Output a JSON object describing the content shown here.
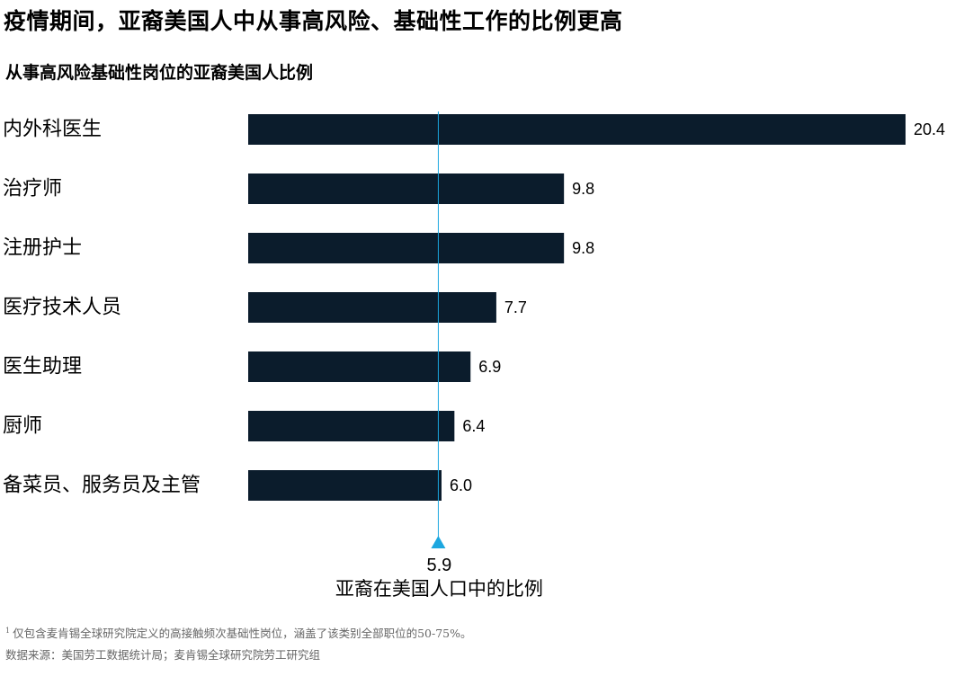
{
  "title": "疫情期间，亚裔美国人中从事高风险、基础性工作的比例更高",
  "subtitle": "从事高风险基础性岗位的亚裔美国人比例",
  "chart_data": {
    "type": "bar",
    "orientation": "horizontal",
    "categories": [
      "内外科医生",
      "治疗师",
      "注册护士",
      "医疗技术人员",
      "医生助理",
      "厨师",
      "备菜员、服务员及主管"
    ],
    "values": [
      20.4,
      9.8,
      9.8,
      7.7,
      6.9,
      6.4,
      6.0
    ],
    "value_labels": [
      "20.4",
      "9.8",
      "9.8",
      "7.7",
      "6.9",
      "6.4",
      "6.0"
    ],
    "xlim": [
      0,
      20.4
    ],
    "grid": false,
    "bar_color": "#0b1c2c",
    "reference_line": {
      "value": 5.9,
      "value_label": "5.9",
      "label": "亚裔在美国人口中的比例",
      "color": "#1ca7e0"
    }
  },
  "footnotes": {
    "note_marker": "1",
    "note": "仅包含麦肯锡全球研究院定义的高接触频次基础性岗位，涵盖了该类别全部职位的50-75%。",
    "source": "数据来源：美国劳工数据统计局；麦肯锡全球研究院劳工研究组"
  }
}
